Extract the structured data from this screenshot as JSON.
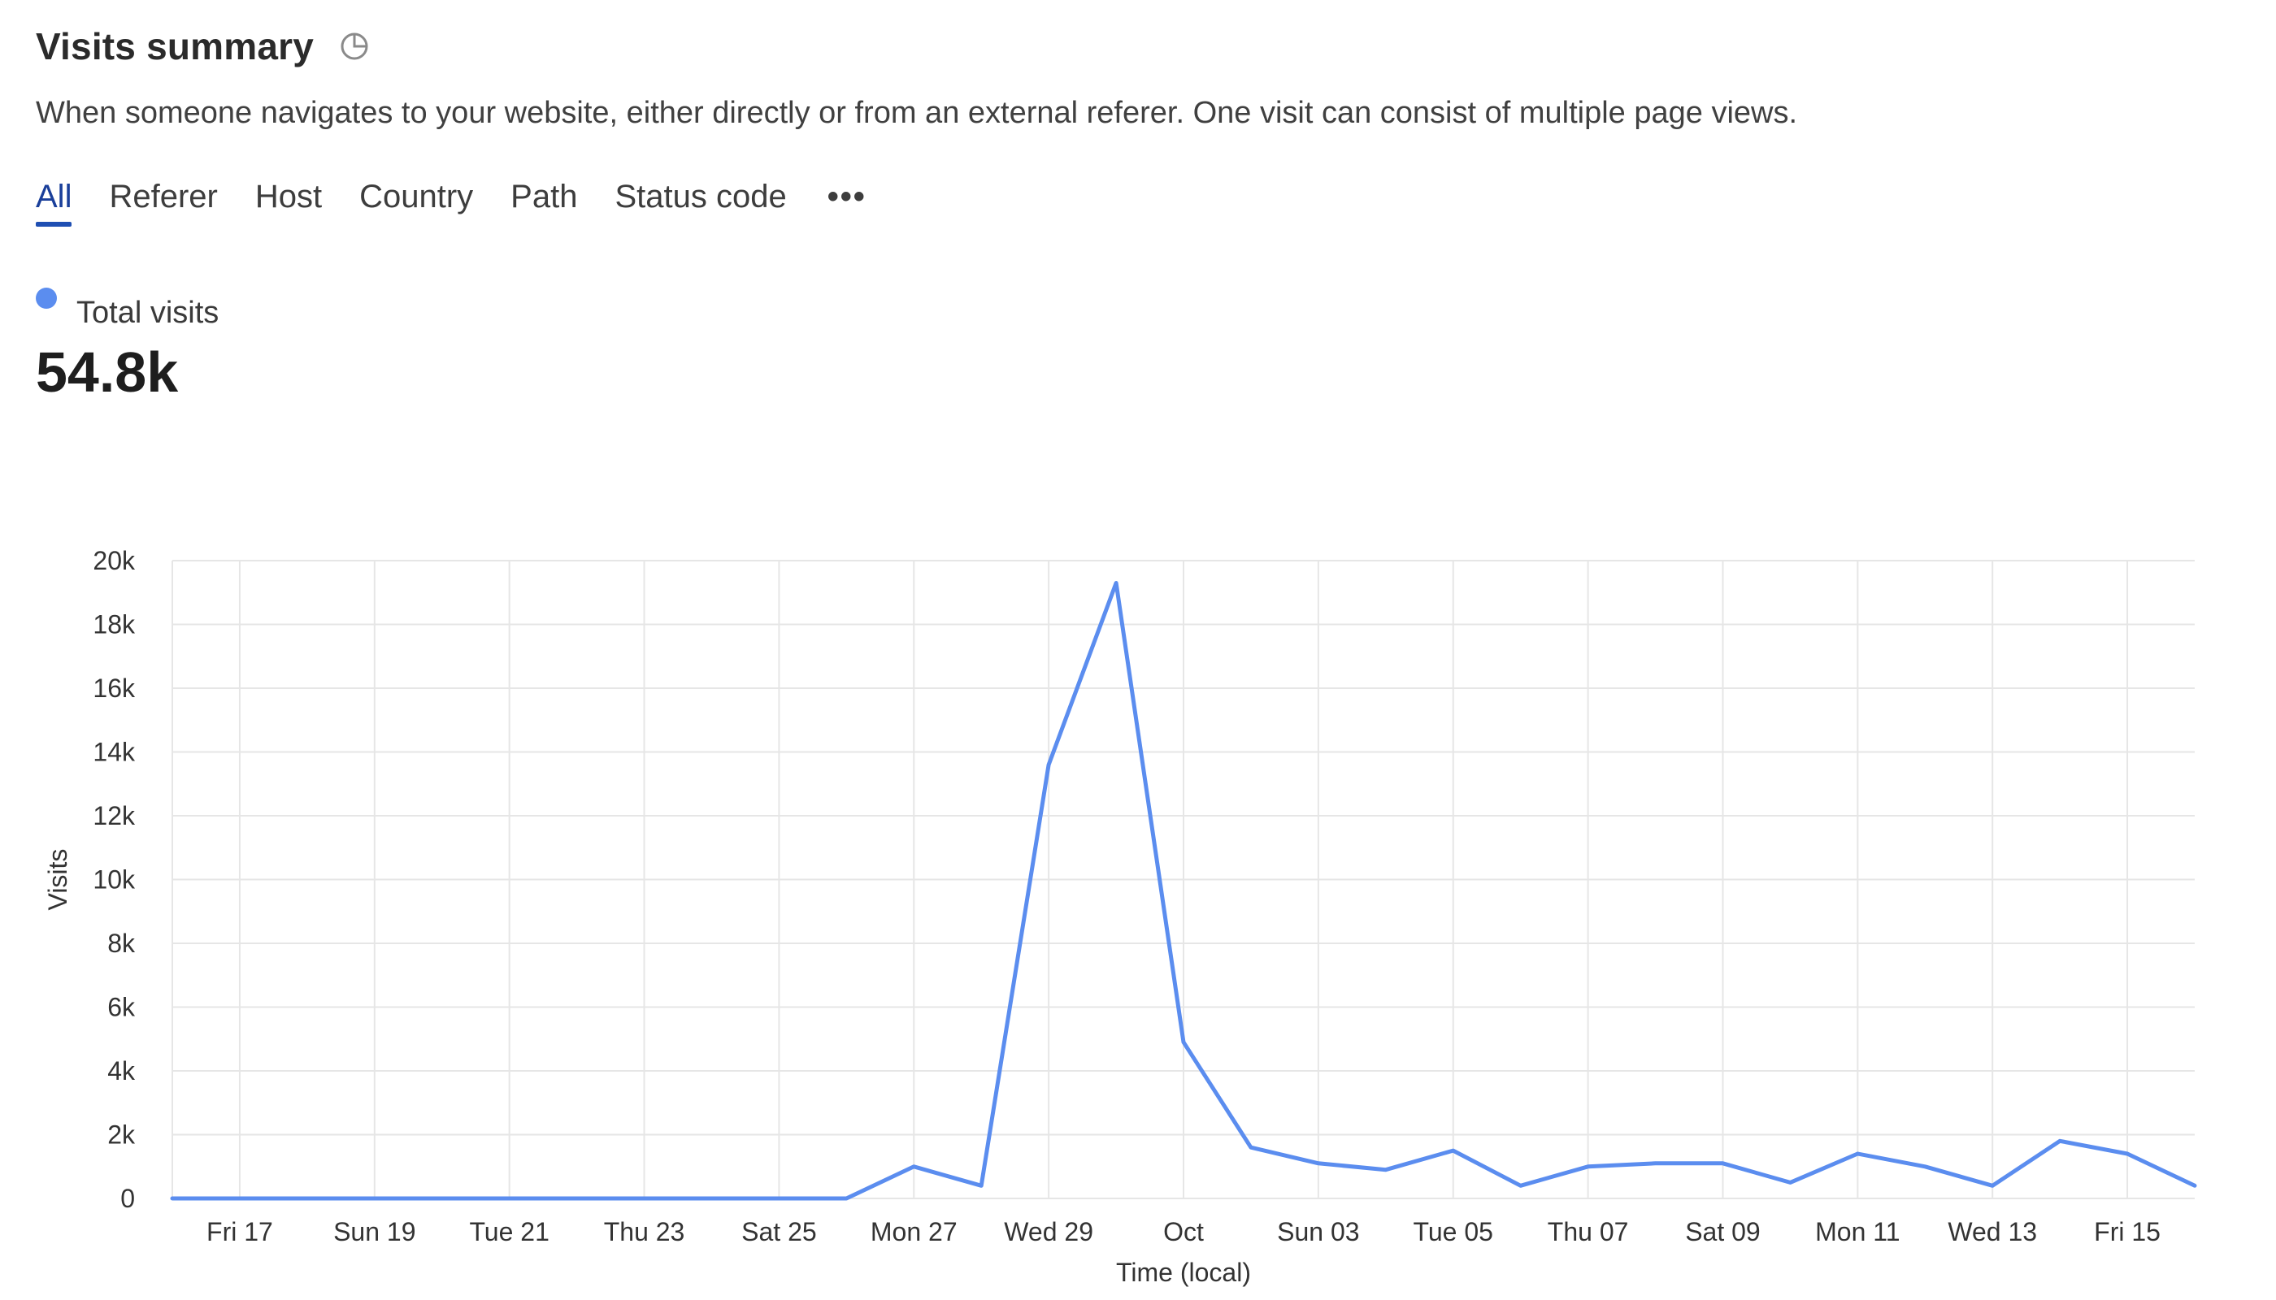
{
  "header": {
    "title": "Visits summary",
    "info_icon": "pie-chart-icon"
  },
  "description": "When someone navigates to your website, either directly or from an external referer. One visit can consist of multiple page views.",
  "tabs": [
    {
      "label": "All",
      "active": true
    },
    {
      "label": "Referer",
      "active": false
    },
    {
      "label": "Host",
      "active": false
    },
    {
      "label": "Country",
      "active": false
    },
    {
      "label": "Path",
      "active": false
    },
    {
      "label": "Status code",
      "active": false
    }
  ],
  "more_label": "•••",
  "legend": {
    "label": "Total visits",
    "color": "#5b8def"
  },
  "total_value": "54.8k",
  "chart_data": {
    "type": "line",
    "xlabel": "Time (local)",
    "ylabel": "Visits",
    "ylim": [
      0,
      20000
    ],
    "yticks": [
      {
        "value": 0,
        "label": "0"
      },
      {
        "value": 2000,
        "label": "2k"
      },
      {
        "value": 4000,
        "label": "4k"
      },
      {
        "value": 6000,
        "label": "6k"
      },
      {
        "value": 8000,
        "label": "8k"
      },
      {
        "value": 10000,
        "label": "10k"
      },
      {
        "value": 12000,
        "label": "12k"
      },
      {
        "value": 14000,
        "label": "14k"
      },
      {
        "value": 16000,
        "label": "16k"
      },
      {
        "value": 18000,
        "label": "18k"
      },
      {
        "value": 20000,
        "label": "20k"
      }
    ],
    "xticks": [
      "Fri 17",
      "Sun 19",
      "Tue 21",
      "Thu 23",
      "Sat 25",
      "Mon 27",
      "Wed 29",
      "Oct",
      "Sun 03",
      "Tue 05",
      "Thu 07",
      "Sat 09",
      "Mon 11",
      "Wed 13",
      "Fri 15"
    ],
    "x": [
      "Sep 16",
      "Sep 17",
      "Sep 18",
      "Sep 19",
      "Sep 20",
      "Sep 21",
      "Sep 22",
      "Sep 23",
      "Sep 24",
      "Sep 25",
      "Sep 26",
      "Sep 27",
      "Sep 28",
      "Sep 29",
      "Sep 30",
      "Oct 01",
      "Oct 02",
      "Oct 03",
      "Oct 04",
      "Oct 05",
      "Oct 06",
      "Oct 07",
      "Oct 08",
      "Oct 09",
      "Oct 10",
      "Oct 11",
      "Oct 12",
      "Oct 13",
      "Oct 14",
      "Oct 15",
      "Oct 16"
    ],
    "series": [
      {
        "name": "Total visits",
        "color": "#5b8def",
        "values": [
          0,
          0,
          0,
          0,
          0,
          0,
          0,
          0,
          0,
          0,
          0,
          1000,
          400,
          13600,
          19300,
          4900,
          1600,
          1100,
          900,
          1500,
          400,
          1000,
          1100,
          1100,
          500,
          1400,
          1000,
          400,
          1800,
          1400,
          400
        ]
      }
    ],
    "grid": true,
    "grid_color": "#e6e6e6"
  }
}
